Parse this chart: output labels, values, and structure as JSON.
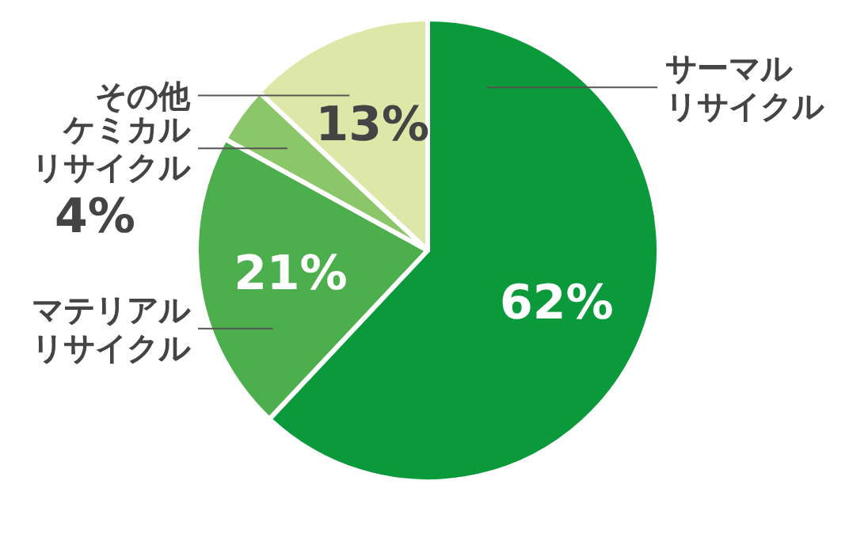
{
  "chart_data": {
    "type": "pie",
    "categories": [
      "サーマルリサイクル",
      "マテリアルリサイクル",
      "ケミカルリサイクル",
      "その他"
    ],
    "values": [
      62,
      21,
      4,
      13
    ],
    "colors": [
      "#0a9a3c",
      "#4cae4c",
      "#8cc66a",
      "#dde8a8"
    ],
    "value_labels": [
      "62%",
      "21%",
      "4%",
      "13%"
    ]
  }
}
